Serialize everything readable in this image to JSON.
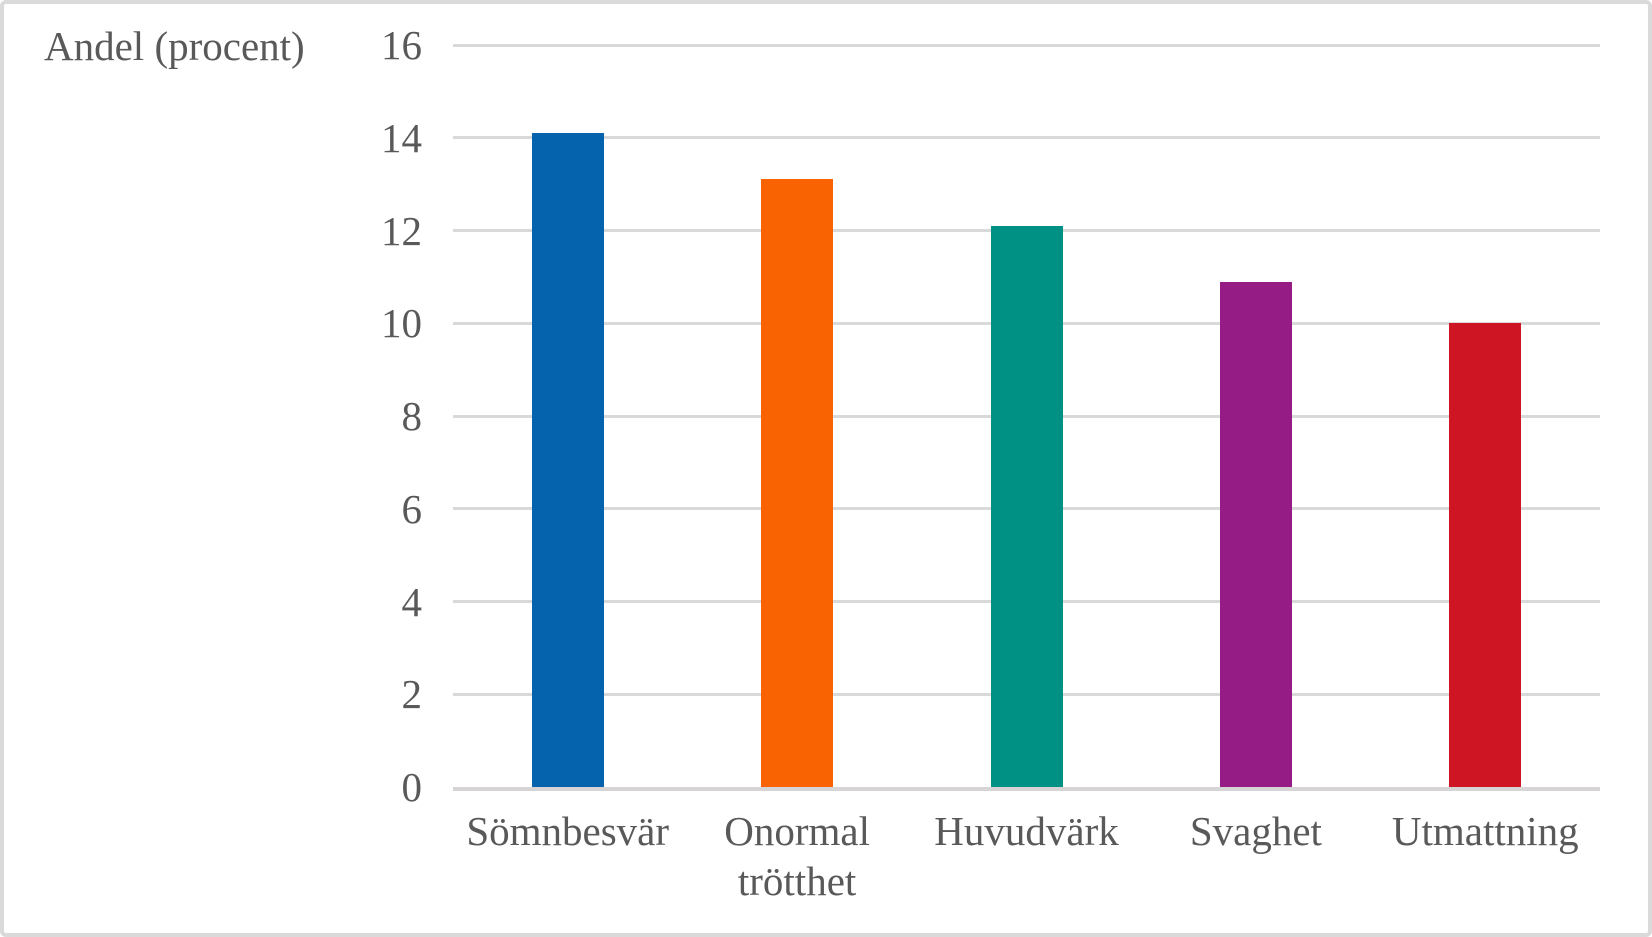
{
  "chart_data": {
    "type": "bar",
    "title": "Andel (procent)",
    "ylabel": "Andel (procent)",
    "xlabel": "",
    "categories": [
      "Sömnbesvär",
      "Onormal trötthet",
      "Huvudvärk",
      "Svaghet",
      "Utmattning"
    ],
    "category_labels_display": [
      "Sömnbesvär",
      "Onormal\ntrötthet",
      "Huvudvärk",
      "Svaghet",
      "Utmattning"
    ],
    "values": [
      14.1,
      13.1,
      12.1,
      10.9,
      10.0
    ],
    "bar_colors": [
      "#0563AE",
      "#F96302",
      "#009184",
      "#951C84",
      "#CD1523"
    ],
    "ylim": [
      0,
      16
    ],
    "yticks": [
      0,
      2,
      4,
      6,
      8,
      10,
      12,
      14,
      16
    ],
    "grid": "horizontal",
    "legend": "none"
  },
  "colors": {
    "text": "#595959",
    "gridline": "#D9D9D9",
    "axis_line": "#D6D4D4",
    "frame_border": "#DADADA",
    "background": "#FFFFFF"
  }
}
